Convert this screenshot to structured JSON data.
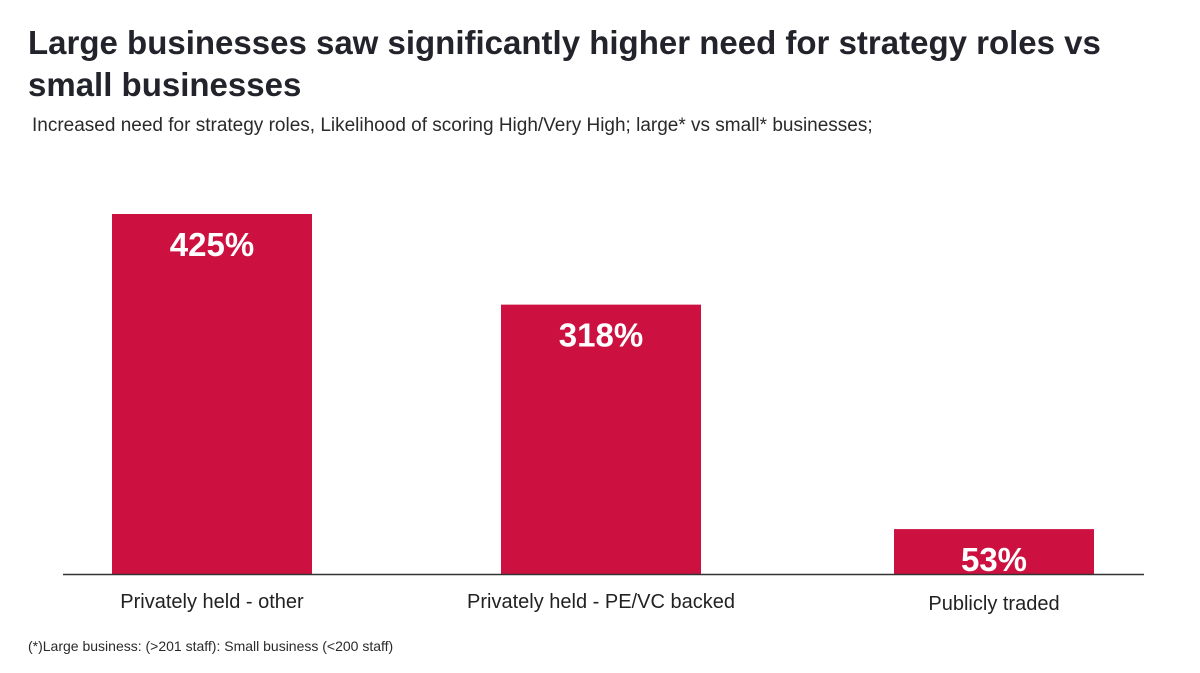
{
  "title": "Large businesses saw significantly higher need for strategy roles vs small businesses",
  "subtitle": "Increased need for strategy roles, Likelihood of scoring High/Very High; large* vs small* businesses;",
  "footnote": "(*)Large business: (>201 staff): Small business (<200 staff)",
  "colors": {
    "bar": "#cc1140",
    "axis": "#333333"
  },
  "chart_data": {
    "type": "bar",
    "categories": [
      "Privately held - other",
      "Privately held - PE/VC backed",
      "Publicly traded"
    ],
    "values": [
      425,
      318,
      53
    ],
    "data_labels": [
      "425%",
      "318%",
      "53%"
    ],
    "ylim": [
      0,
      425
    ],
    "grid": false,
    "legend": "none"
  }
}
